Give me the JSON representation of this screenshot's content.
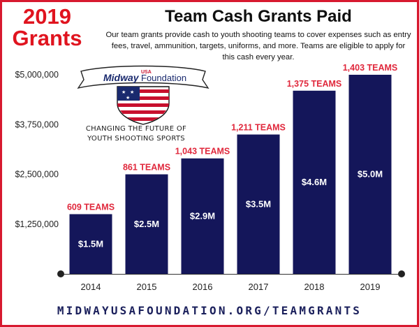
{
  "badge": {
    "line1": "2019",
    "line2": "Grants"
  },
  "header": {
    "title": "Team Cash Grants Paid",
    "subtitle": "Our team grants provide cash to youth shooting teams to cover expenses such as entry fees, travel, ammunition, targets, uniforms, and more.  Teams are eligible to apply for this cash every year."
  },
  "logo": {
    "usa": "USA",
    "brand_left": "Midway",
    "brand_right": "Foundation",
    "tagline_1": "CHANGING THE FUTURE OF",
    "tagline_2": "YOUTH SHOOTING SPORTS"
  },
  "footer": {
    "url": "MIDWAYUSAFOUNDATION.ORG/TEAMGRANTS"
  },
  "colors": {
    "bar": "#14165a",
    "team_label": "#e0283c",
    "accent_border": "#d7192f"
  },
  "chart_data": {
    "type": "bar",
    "title": "Team Cash Grants Paid",
    "categories": [
      "2014",
      "2015",
      "2016",
      "2017",
      "2018",
      "2019"
    ],
    "values": [
      1500000,
      2500000,
      2900000,
      3500000,
      4600000,
      5000000
    ],
    "value_labels": [
      "$1.5M",
      "$2.5M",
      "$2.9M",
      "$3.5M",
      "$4.6M",
      "$5.0M"
    ],
    "team_labels": [
      "609 TEAMS",
      "861 TEAMS",
      "1,043 TEAMS",
      "1,211 TEAMS",
      "1,375 TEAMS",
      "1,403 TEAMS"
    ],
    "y_ticks": [
      1250000,
      2500000,
      3750000,
      5000000
    ],
    "y_tick_labels": [
      "$1,250,000",
      "$2,500,000",
      "$3,750,000",
      "$5,000,000"
    ],
    "ylim": [
      0,
      5000000
    ],
    "grid": false,
    "legend": "none"
  }
}
